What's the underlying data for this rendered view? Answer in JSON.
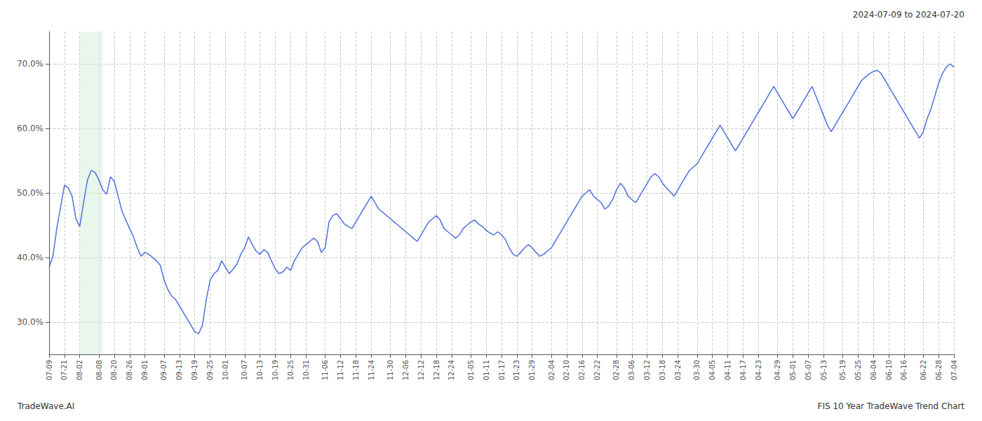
{
  "chart_data": {
    "type": "line",
    "annotations": [
      "2024-07-09 to 2024-07-20",
      "TradeWave.AI",
      "FIS 10 Year TradeWave Trend Chart"
    ],
    "categories": [
      "07-09",
      null,
      null,
      null,
      "07-21",
      null,
      null,
      null,
      "08-02",
      null,
      null,
      null,
      null,
      "08-08",
      null,
      null,
      null,
      "08-20",
      null,
      null,
      null,
      "08-26",
      null,
      null,
      null,
      "09-01",
      null,
      null,
      null,
      null,
      "09-07",
      null,
      null,
      null,
      "09-13",
      null,
      null,
      null,
      "09-19",
      null,
      null,
      null,
      "09-25",
      null,
      null,
      null,
      "10-01",
      null,
      null,
      null,
      null,
      "10-07",
      null,
      null,
      null,
      "10-13",
      null,
      null,
      null,
      "10-19",
      null,
      null,
      null,
      "10-25",
      null,
      null,
      null,
      "10-31",
      null,
      null,
      null,
      null,
      "11-06",
      null,
      null,
      null,
      "11-12",
      null,
      null,
      null,
      "11-18",
      null,
      null,
      null,
      "11-24",
      null,
      null,
      null,
      null,
      "11-30",
      null,
      null,
      null,
      "12-06",
      null,
      null,
      null,
      "12-12",
      null,
      null,
      null,
      "12-18",
      null,
      null,
      null,
      "12-24",
      null,
      null,
      null,
      null,
      "01-05",
      null,
      null,
      null,
      "01-11",
      null,
      null,
      null,
      "01-17",
      null,
      null,
      null,
      "01-23",
      null,
      null,
      null,
      "01-29",
      null,
      null,
      null,
      null,
      "02-04",
      null,
      null,
      null,
      "02-10",
      null,
      null,
      null,
      "02-16",
      null,
      null,
      null,
      "02-22",
      null,
      null,
      null,
      null,
      "02-28",
      null,
      null,
      null,
      "03-06",
      null,
      null,
      null,
      "03-12",
      null,
      null,
      null,
      "03-18",
      null,
      null,
      null,
      "03-24",
      null,
      null,
      null,
      null,
      "03-30",
      null,
      null,
      null,
      "04-05",
      null,
      null,
      null,
      "04-11",
      null,
      null,
      null,
      "04-17",
      null,
      null,
      null,
      "04-23",
      null,
      null,
      null,
      null,
      "04-29",
      null,
      null,
      null,
      "05-01",
      null,
      null,
      null,
      "05-07",
      null,
      null,
      null,
      "05-13",
      null,
      null,
      null,
      null,
      "05-19",
      null,
      null,
      null,
      "05-25",
      null,
      null,
      null,
      "06-04",
      null,
      null,
      null,
      "06-10",
      null,
      null,
      null,
      "06-16",
      null,
      null,
      null,
      null,
      "06-22",
      null,
      null,
      null,
      "06-28",
      null,
      null,
      null,
      "07-04"
    ],
    "values": [
      38.5,
      40.2,
      44.5,
      47.8,
      51.2,
      50.8,
      49.5,
      46.0,
      44.8,
      48.5,
      52.0,
      53.5,
      53.2,
      52.0,
      50.5,
      49.8,
      52.5,
      51.8,
      49.5,
      47.2,
      45.8,
      44.5,
      43.2,
      41.5,
      40.2,
      40.8,
      40.5,
      40.0,
      39.5,
      38.8,
      36.5,
      35.0,
      34.0,
      33.5,
      32.5,
      31.5,
      30.5,
      29.5,
      28.5,
      28.2,
      29.5,
      33.5,
      36.5,
      37.5,
      38.0,
      39.5,
      38.5,
      37.5,
      38.2,
      39.0,
      40.5,
      41.5,
      43.2,
      42.0,
      41.0,
      40.5,
      41.2,
      40.8,
      39.5,
      38.2,
      37.5,
      37.8,
      38.5,
      38.0,
      39.5,
      40.5,
      41.5,
      42.0,
      42.5,
      43.0,
      42.5,
      40.8,
      41.5,
      45.5,
      46.5,
      46.8,
      46.0,
      45.2,
      44.8,
      44.5,
      45.5,
      46.5,
      47.5,
      48.5,
      49.5,
      48.5,
      47.5,
      47.0,
      46.5,
      46.0,
      45.5,
      45.0,
      44.5,
      44.0,
      43.5,
      43.0,
      42.5,
      43.5,
      44.5,
      45.5,
      46.0,
      46.5,
      45.8,
      44.5,
      44.0,
      43.5,
      43.0,
      43.5,
      44.5,
      45.0,
      45.5,
      45.8,
      45.2,
      44.8,
      44.2,
      43.8,
      43.5,
      44.0,
      43.5,
      42.8,
      41.5,
      40.5,
      40.2,
      40.8,
      41.5,
      42.0,
      41.5,
      40.8,
      40.2,
      40.5,
      41.0,
      41.5,
      42.5,
      43.5,
      44.5,
      45.5,
      46.5,
      47.5,
      48.5,
      49.5,
      50.0,
      50.5,
      49.5,
      49.0,
      48.5,
      47.5,
      48.0,
      49.0,
      50.5,
      51.5,
      50.8,
      49.5,
      49.0,
      48.5,
      49.5,
      50.5,
      51.5,
      52.5,
      53.0,
      52.5,
      51.5,
      50.8,
      50.2,
      49.5,
      50.5,
      51.5,
      52.5,
      53.5,
      54.0,
      54.5,
      55.5,
      56.5,
      57.5,
      58.5,
      59.5,
      60.5,
      59.5,
      58.5,
      57.5,
      56.5,
      57.5,
      58.5,
      59.5,
      60.5,
      61.5,
      62.5,
      63.5,
      64.5,
      65.5,
      66.5,
      65.5,
      64.5,
      63.5,
      62.5,
      61.5,
      62.5,
      63.5,
      64.5,
      65.5,
      66.5,
      65.0,
      63.5,
      62.0,
      60.5,
      59.5,
      60.5,
      61.5,
      62.5,
      63.5,
      64.5,
      65.5,
      66.5,
      67.5,
      68.0,
      68.5,
      68.8,
      69.0,
      68.5,
      67.5,
      66.5,
      65.5,
      64.5,
      63.5,
      62.5,
      61.5,
      60.5,
      59.5,
      58.5,
      59.5,
      61.5,
      63.0,
      65.0,
      67.0,
      68.5,
      69.5,
      70.0,
      69.5
    ],
    "ylim": [
      25.0,
      75.0
    ],
    "yticks": [
      {
        "value": 30.0,
        "label": "30.0%"
      },
      {
        "value": 40.0,
        "label": "40.0%"
      },
      {
        "value": 50.0,
        "label": "50.0%"
      },
      {
        "value": 60.0,
        "label": "60.0%"
      },
      {
        "value": 70.0,
        "label": "70.0%"
      }
    ],
    "grid": true,
    "highlight": {
      "from": 8,
      "to": 14,
      "color": "#d4edda"
    }
  }
}
